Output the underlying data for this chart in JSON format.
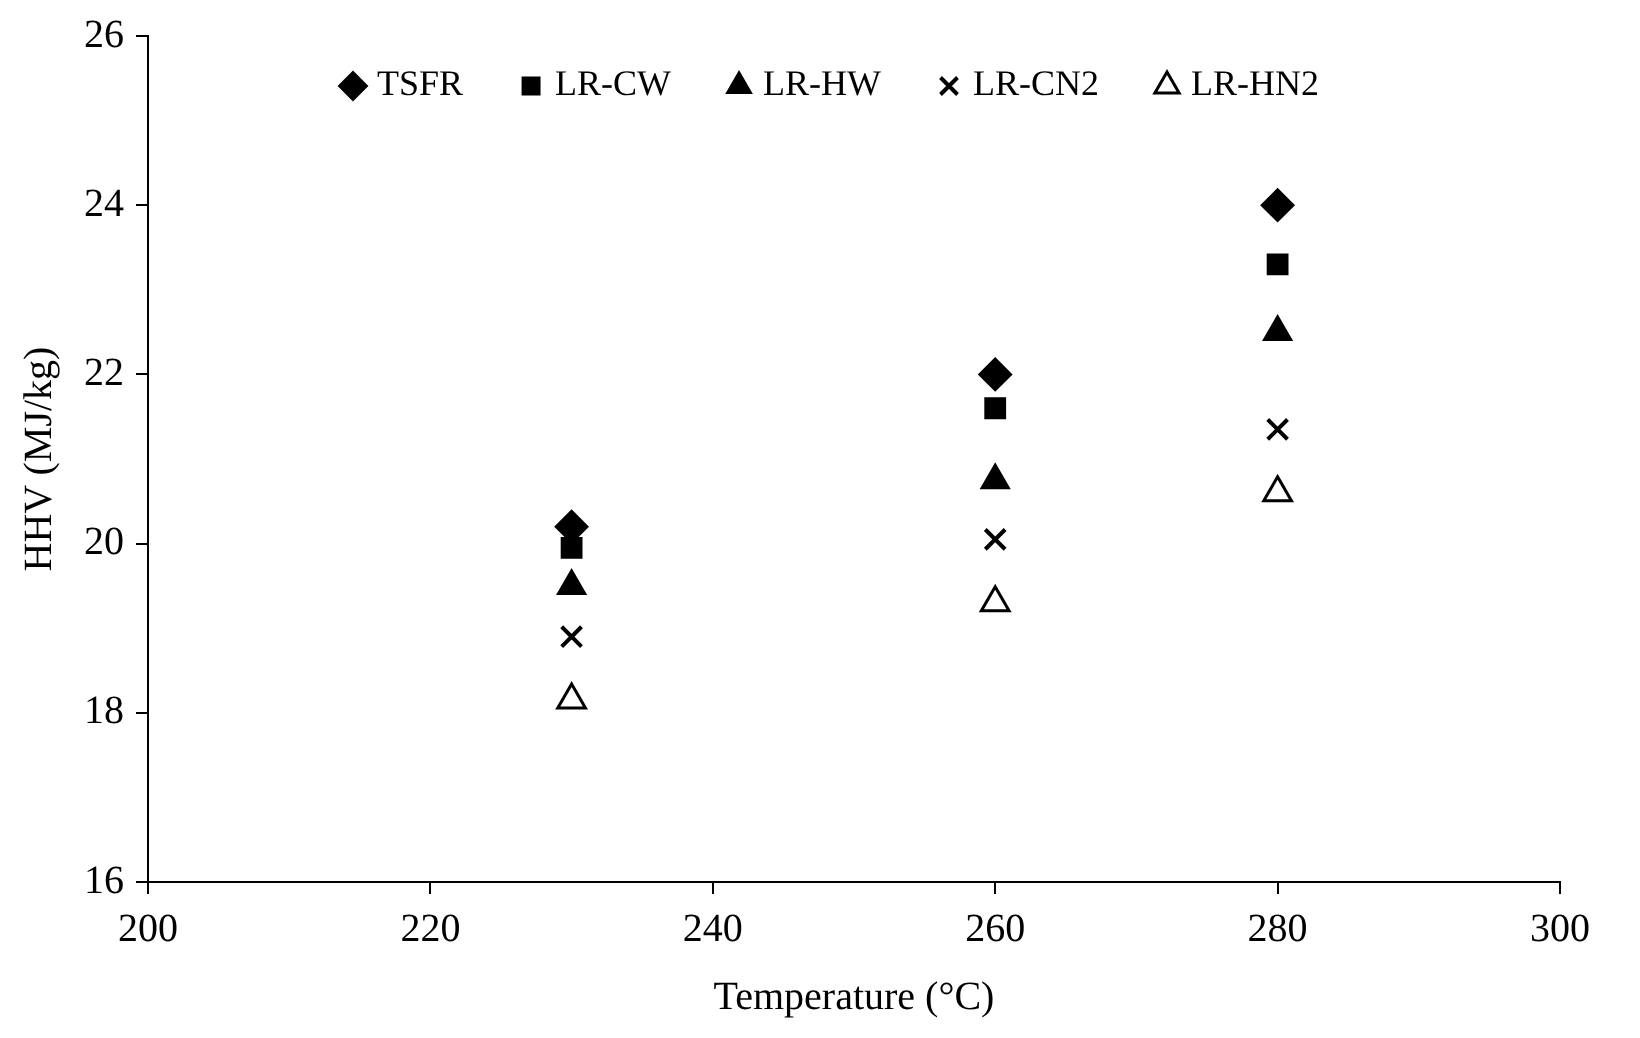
{
  "chart_data": {
    "type": "scatter",
    "xlabel": "Temperature (°C)",
    "ylabel": "HHV (MJ/kg)",
    "x": [
      230,
      260,
      280
    ],
    "xlim": [
      200,
      300
    ],
    "xticks": [
      200,
      220,
      240,
      260,
      280,
      300
    ],
    "ylim": [
      16,
      26
    ],
    "yticks": [
      16,
      18,
      20,
      22,
      24,
      26
    ],
    "grid": false,
    "legend": "top",
    "series": [
      {
        "name": "TSFR",
        "color": "#000000",
        "marker": "diamond",
        "values": [
          20.2,
          22.0,
          24.0
        ]
      },
      {
        "name": "LR-CW",
        "color": "#000000",
        "marker": "square",
        "values": [
          19.95,
          21.6,
          23.3
        ]
      },
      {
        "name": "LR-HW",
        "color": "#000000",
        "marker": "triangle",
        "values": [
          19.5,
          20.75,
          22.5
        ]
      },
      {
        "name": "LR-CN2",
        "color": "#000000",
        "marker": "cross",
        "values": [
          18.9,
          20.05,
          21.35
        ]
      },
      {
        "name": "LR-HN2",
        "color": "#000000",
        "marker": "triangle",
        "values": [
          18.15,
          19.3,
          20.6
        ]
      }
    ]
  }
}
